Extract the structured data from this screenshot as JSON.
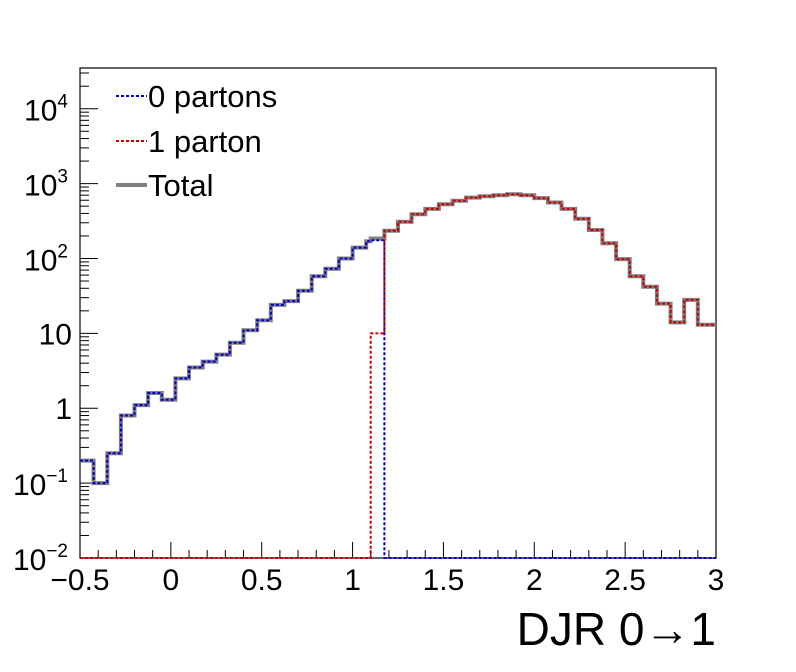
{
  "chart_data": {
    "type": "line",
    "xlabel": "DJR 0→1",
    "ylabel": "",
    "xlim": [
      -0.5,
      3.0
    ],
    "ylim": [
      0.01,
      35000
    ],
    "y_scale": "log",
    "grid": false,
    "legend_position": "top-left",
    "x_ticks": [
      {
        "value": -0.5,
        "label": "−0.5"
      },
      {
        "value": 0.0,
        "label": "0"
      },
      {
        "value": 0.5,
        "label": "0.5"
      },
      {
        "value": 1.0,
        "label": "1"
      },
      {
        "value": 1.5,
        "label": "1.5"
      },
      {
        "value": 2.0,
        "label": "2"
      },
      {
        "value": 2.5,
        "label": "2.5"
      },
      {
        "value": 3.0,
        "label": "3"
      }
    ],
    "y_ticks": [
      {
        "value": 0.01,
        "base": "10",
        "exp": "−2",
        "label": ""
      },
      {
        "value": 0.1,
        "base": "10",
        "exp": "−1",
        "label": ""
      },
      {
        "value": 1,
        "base": "",
        "exp": "",
        "label": "1"
      },
      {
        "value": 10,
        "base": "",
        "exp": "",
        "label": "10"
      },
      {
        "value": 100,
        "base": "10",
        "exp": "2",
        "label": ""
      },
      {
        "value": 1000,
        "base": "10",
        "exp": "3",
        "label": ""
      },
      {
        "value": 10000,
        "base": "10",
        "exp": "4",
        "label": ""
      }
    ],
    "bin_edges": [
      -0.5,
      -0.425,
      -0.35,
      -0.275,
      -0.2,
      -0.125,
      -0.05,
      0.025,
      0.1,
      0.175,
      0.25,
      0.325,
      0.4,
      0.475,
      0.55,
      0.625,
      0.7,
      0.775,
      0.85,
      0.925,
      1.0,
      1.075,
      1.1,
      1.175,
      1.25,
      1.325,
      1.4,
      1.475,
      1.55,
      1.625,
      1.7,
      1.775,
      1.85,
      1.925,
      2.0,
      2.075,
      2.15,
      2.225,
      2.3,
      2.375,
      2.45,
      2.525,
      2.6,
      2.675,
      2.75,
      2.825,
      2.9,
      3.0
    ],
    "series": [
      {
        "name": "0 partons",
        "color": "#0000cc",
        "dashed": true,
        "values": [
          0.2,
          0.1,
          0.25,
          0.8,
          1.1,
          1.6,
          1.3,
          2.5,
          3.5,
          4.2,
          5.2,
          7.5,
          11,
          15,
          24,
          27,
          37,
          58,
          73,
          100,
          140,
          170,
          175,
          0.01,
          0.01,
          0.01,
          0.01,
          0.01,
          0.01,
          0.01,
          0.01,
          0.01,
          0.01,
          0.01,
          0.01,
          0.01,
          0.01,
          0.01,
          0.01,
          0.01,
          0.01,
          0.01,
          0.01,
          0.01,
          0.01,
          0.01,
          0.01
        ]
      },
      {
        "name": "1 parton",
        "color": "#cc0000",
        "dashed": true,
        "values": [
          0.01,
          0.01,
          0.01,
          0.01,
          0.01,
          0.01,
          0.01,
          0.01,
          0.01,
          0.01,
          0.01,
          0.01,
          0.01,
          0.01,
          0.01,
          0.01,
          0.01,
          0.01,
          0.01,
          0.01,
          0.01,
          0.01,
          10,
          235,
          310,
          390,
          460,
          530,
          590,
          650,
          680,
          700,
          720,
          700,
          640,
          560,
          460,
          340,
          240,
          160,
          98,
          58,
          42,
          25,
          14,
          28,
          13
        ]
      },
      {
        "name": "Total",
        "color": "#808080",
        "dashed": false,
        "values": [
          0.2,
          0.1,
          0.25,
          0.8,
          1.1,
          1.6,
          1.3,
          2.5,
          3.5,
          4.2,
          5.2,
          7.5,
          11,
          15,
          24,
          27,
          37,
          58,
          73,
          100,
          140,
          170,
          185,
          235,
          310,
          390,
          460,
          530,
          590,
          650,
          680,
          700,
          720,
          700,
          640,
          560,
          460,
          340,
          240,
          160,
          98,
          58,
          42,
          25,
          14,
          28,
          13
        ]
      }
    ]
  }
}
